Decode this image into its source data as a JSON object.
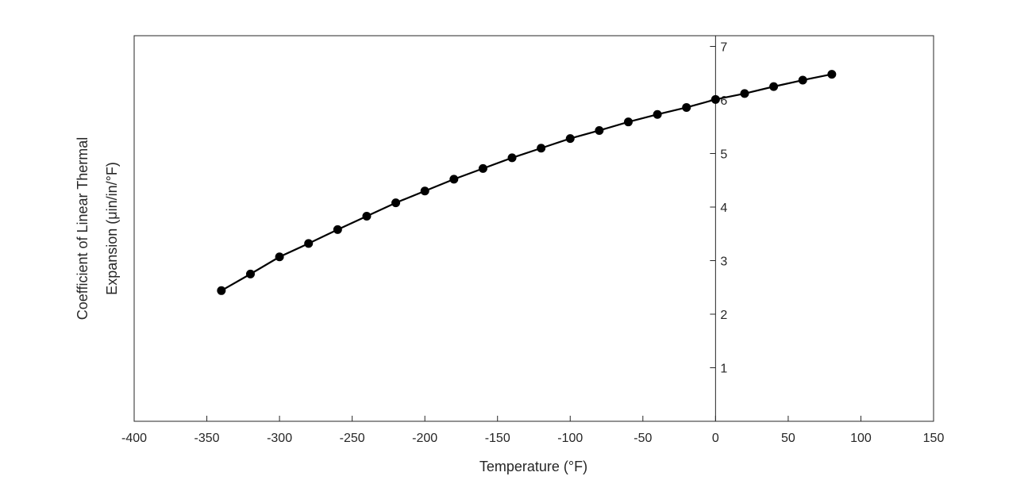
{
  "chart_data": {
    "type": "line",
    "title": "",
    "xlabel": "Temperature (°F)",
    "ylabel_line1": "Coefficient of Linear Thermal",
    "ylabel_line2": "Expansion (μin/in/°F)",
    "xlim": [
      -400,
      150
    ],
    "ylim": [
      0,
      7.2
    ],
    "xticks": [
      -400,
      -350,
      -300,
      -250,
      -200,
      -150,
      -100,
      -50,
      0,
      50,
      100,
      150
    ],
    "yticks": [
      1,
      2,
      3,
      4,
      5,
      6,
      7
    ],
    "y_axis_location": "origin",
    "grid": false,
    "marker": "filled-circle",
    "line_color": "#000000",
    "x": [
      -340,
      -320,
      -300,
      -280,
      -260,
      -240,
      -220,
      -200,
      -180,
      -160,
      -140,
      -120,
      -100,
      -80,
      -60,
      -40,
      -20,
      0,
      20,
      40,
      60,
      80
    ],
    "values": [
      2.44,
      2.75,
      3.07,
      3.32,
      3.58,
      3.83,
      4.08,
      4.3,
      4.52,
      4.72,
      4.92,
      5.1,
      5.28,
      5.43,
      5.59,
      5.73,
      5.86,
      6.01,
      6.12,
      6.25,
      6.37,
      6.48
    ]
  }
}
